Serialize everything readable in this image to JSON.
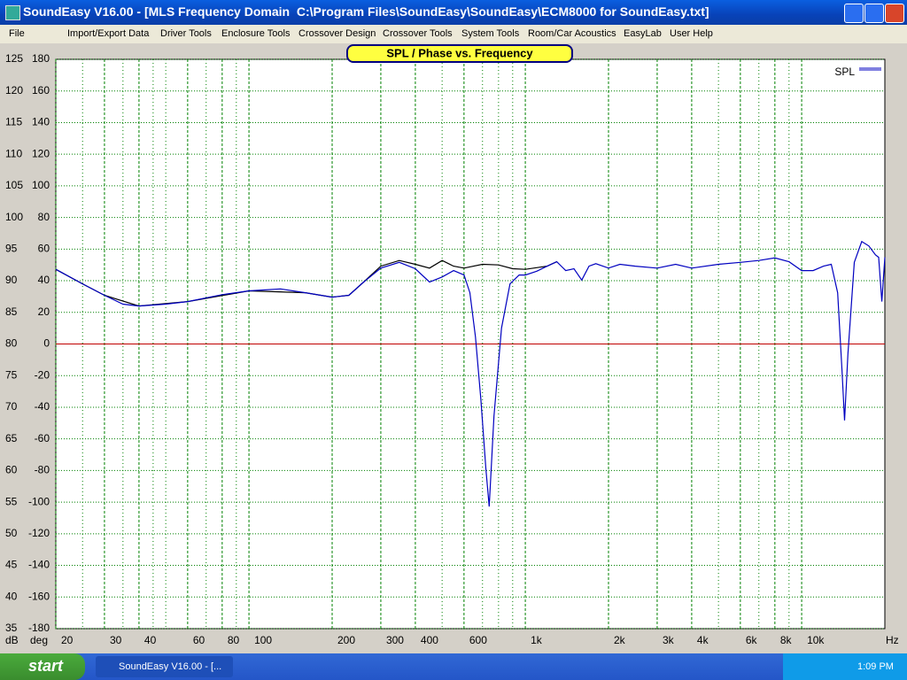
{
  "window": {
    "title": "SoundEasy V16.00 - [MLS Frequency Domain  C:\\Program Files\\SoundEasy\\SoundEasy\\ECM8000 for SoundEasy.txt]",
    "menu": [
      "File",
      "Import/Export Data",
      "Driver Tools",
      "Enclosure Tools",
      "Crossover Design",
      "Crossover Tools",
      "System Tools",
      "Room/Car Acoustics",
      "EasyLab",
      "User Help"
    ]
  },
  "chart_data": {
    "type": "line",
    "title": "SPL / Phase vs. Frequency",
    "xlabel": "Hz",
    "ylabel": "dB",
    "y2label": "deg",
    "xscale": "log",
    "xlim": [
      20,
      20000
    ],
    "xticks": [
      20,
      30,
      40,
      60,
      80,
      100,
      200,
      300,
      400,
      600,
      {
        "value": 1000,
        "label": "1k"
      },
      {
        "value": 2000,
        "label": "2k"
      },
      {
        "value": 3000,
        "label": "3k"
      },
      {
        "value": 4000,
        "label": "4k"
      },
      {
        "value": 6000,
        "label": "6k"
      },
      {
        "value": 8000,
        "label": "8k"
      },
      {
        "value": 10000,
        "label": "10k"
      }
    ],
    "xminorticks": [
      25,
      35,
      45,
      50,
      70,
      90,
      500,
      700,
      800,
      900,
      5000,
      7000,
      9000
    ],
    "ylim": [
      35,
      125
    ],
    "yticks": [
      35,
      40,
      45,
      50,
      55,
      60,
      65,
      70,
      75,
      80,
      85,
      90,
      95,
      100,
      105,
      110,
      115,
      120,
      125
    ],
    "y2lim": [
      -180,
      180
    ],
    "y2ticks": [
      -180,
      -160,
      -140,
      -120,
      -100,
      -80,
      -60,
      -40,
      -20,
      0,
      20,
      40,
      60,
      80,
      100,
      120,
      140,
      160,
      180
    ],
    "grid": true,
    "grid_color": "#008000",
    "reference_line": {
      "value": 0,
      "axis": "y2",
      "color": "#c00000"
    },
    "legend": "upper right",
    "series": [
      {
        "name": "SPL",
        "color": "#0000c0",
        "x": [
          20,
          25,
          30,
          35,
          40,
          50,
          60,
          80,
          100,
          130,
          160,
          200,
          230,
          260,
          300,
          350,
          400,
          450,
          500,
          550,
          600,
          630,
          660,
          690,
          720,
          740,
          770,
          820,
          880,
          950,
          1000,
          1100,
          1200,
          1300,
          1400,
          1500,
          1600,
          1700,
          1800,
          2000,
          2200,
          2500,
          3000,
          3500,
          4000,
          5000,
          6000,
          7000,
          8000,
          9000,
          10000,
          11000,
          12000,
          12800,
          13500,
          14000,
          14300,
          14700,
          15500,
          16500,
          17500,
          18500,
          19000,
          19500,
          20000
        ],
        "values": [
          91.8,
          89.5,
          87.7,
          86.3,
          86.0,
          86.3,
          86.7,
          87.8,
          88.4,
          88.7,
          88.1,
          87.4,
          87.7,
          89.8,
          92.0,
          92.9,
          91.9,
          89.8,
          90.6,
          91.6,
          90.9,
          88.1,
          81.1,
          71.4,
          60.2,
          54.3,
          68.6,
          82.5,
          89.5,
          90.9,
          90.9,
          91.5,
          92.3,
          93.0,
          91.6,
          91.9,
          90.1,
          92.3,
          92.7,
          92.0,
          92.6,
          92.3,
          92.0,
          92.6,
          92.0,
          92.6,
          92.9,
          93.2,
          93.6,
          93.0,
          91.6,
          91.6,
          92.3,
          92.6,
          88.1,
          75.6,
          67.9,
          78.4,
          92.9,
          96.2,
          95.5,
          94.1,
          93.7,
          86.7,
          93.7
        ]
      },
      {
        "color": "#000000",
        "x": [
          20,
          25,
          30,
          40,
          60,
          100,
          160,
          200,
          230,
          260,
          300,
          350,
          400,
          450,
          500,
          550,
          600,
          700,
          800,
          900,
          1000,
          1200,
          1300
        ],
        "values": [
          91.8,
          89.5,
          87.7,
          86.0,
          86.7,
          88.4,
          88.1,
          87.4,
          87.7,
          89.8,
          92.3,
          93.2,
          92.6,
          92.0,
          93.2,
          92.3,
          92.0,
          92.6,
          92.5,
          91.9,
          91.8,
          92.3,
          93.0
        ]
      }
    ]
  },
  "taskbar": {
    "start": "start",
    "task": "SoundEasy V16.00 - [...",
    "clock": "1:09 PM"
  }
}
